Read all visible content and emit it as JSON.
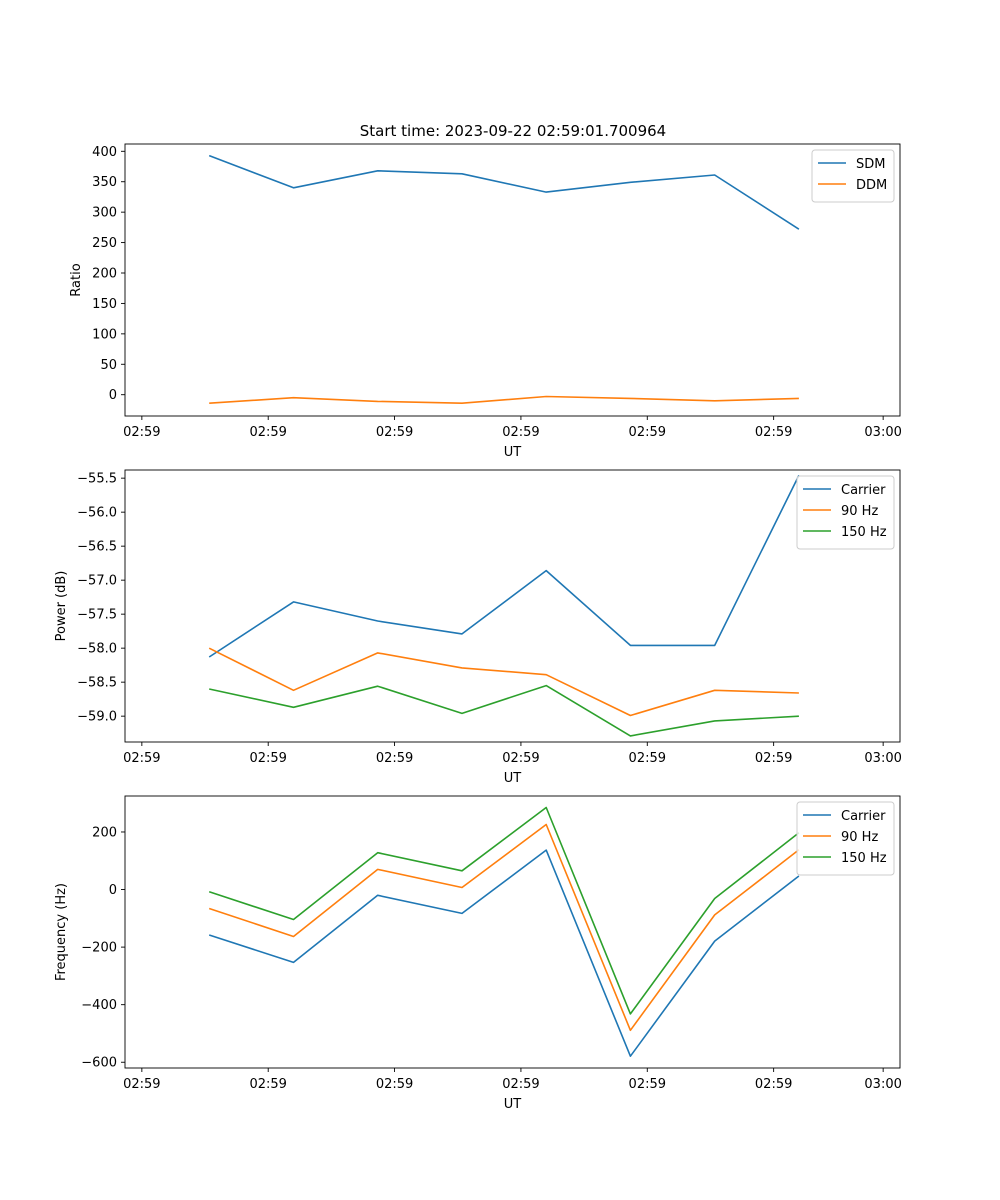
{
  "figure_title": "Start time: 2023-09-22 02:59:01.700964",
  "colors": {
    "blue": "#1f77b4",
    "orange": "#ff7f0e",
    "green": "#2ca02c"
  },
  "chart_data": [
    {
      "type": "line",
      "xlabel": "UT",
      "ylabel": "Ratio",
      "x": [
        1,
        2,
        3,
        4,
        5,
        6,
        7,
        8
      ],
      "xlim": [
        0,
        9.2
      ],
      "x_ticks": [
        0.2,
        1.7,
        3.2,
        4.7,
        6.2,
        7.7,
        9.0
      ],
      "x_tick_labels": [
        "02:59",
        "02:59",
        "02:59",
        "02:59",
        "02:59",
        "02:59",
        "03:00"
      ],
      "ylim": [
        -35,
        412
      ],
      "y_ticks": [
        0,
        50,
        100,
        150,
        200,
        250,
        300,
        350,
        400
      ],
      "y_tick_labels": [
        "0",
        "50",
        "100",
        "150",
        "200",
        "250",
        "300",
        "350",
        "400"
      ],
      "legend_position": "top-right",
      "series": [
        {
          "name": "SDM",
          "color": "#1f77b4",
          "values": [
            393,
            340,
            368,
            363,
            333,
            349,
            361,
            272
          ]
        },
        {
          "name": "DDM",
          "color": "#ff7f0e",
          "values": [
            -14,
            -5,
            -11,
            -14,
            -3,
            -6,
            -10,
            -6
          ]
        }
      ]
    },
    {
      "type": "line",
      "xlabel": "UT",
      "ylabel": "Power (dB)",
      "x": [
        1,
        2,
        3,
        4,
        5,
        6,
        7,
        8
      ],
      "xlim": [
        0,
        9.2
      ],
      "x_ticks": [
        0.2,
        1.7,
        3.2,
        4.7,
        6.2,
        7.7,
        9.0
      ],
      "x_tick_labels": [
        "02:59",
        "02:59",
        "02:59",
        "02:59",
        "02:59",
        "02:59",
        "03:00"
      ],
      "ylim": [
        -59.38,
        -55.38
      ],
      "y_ticks": [
        -59.0,
        -58.5,
        -58.0,
        -57.5,
        -57.0,
        -56.5,
        -56.0,
        -55.5
      ],
      "y_tick_labels": [
        "−59.0",
        "−58.5",
        "−58.0",
        "−57.5",
        "−57.0",
        "−56.5",
        "−56.0",
        "−55.5"
      ],
      "legend_position": "top-right",
      "series": [
        {
          "name": "Carrier",
          "color": "#1f77b4",
          "values": [
            -58.13,
            -57.32,
            -57.6,
            -57.79,
            -56.86,
            -57.96,
            -57.96,
            -55.46
          ]
        },
        {
          "name": "90 Hz",
          "color": "#ff7f0e",
          "values": [
            -58.0,
            -58.62,
            -58.07,
            -58.29,
            -58.39,
            -58.99,
            -58.62,
            -58.66
          ]
        },
        {
          "name": "150 Hz",
          "color": "#2ca02c",
          "values": [
            -58.6,
            -58.87,
            -58.56,
            -58.96,
            -58.55,
            -59.29,
            -59.07,
            -59.0
          ]
        }
      ]
    },
    {
      "type": "line",
      "xlabel": "UT",
      "ylabel": "Frequency (Hz)",
      "x": [
        1,
        2,
        3,
        4,
        5,
        6,
        7,
        8
      ],
      "xlim": [
        0,
        9.2
      ],
      "x_ticks": [
        0.2,
        1.7,
        3.2,
        4.7,
        6.2,
        7.7,
        9.0
      ],
      "x_tick_labels": [
        "02:59",
        "02:59",
        "02:59",
        "02:59",
        "02:59",
        "02:59",
        "03:00"
      ],
      "ylim": [
        -620,
        325
      ],
      "y_ticks": [
        -600,
        -400,
        -200,
        0,
        200
      ],
      "y_tick_labels": [
        "−600",
        "−400",
        "−200",
        "0",
        "200"
      ],
      "legend_position": "top-right",
      "series": [
        {
          "name": "Carrier",
          "color": "#1f77b4",
          "values": [
            -158,
            -253,
            -20,
            -83,
            137,
            -579,
            -179,
            47
          ]
        },
        {
          "name": "90 Hz",
          "color": "#ff7f0e",
          "values": [
            -66,
            -163,
            70,
            7,
            226,
            -489,
            -88,
            138
          ]
        },
        {
          "name": "150 Hz",
          "color": "#2ca02c",
          "values": [
            -8,
            -104,
            128,
            65,
            285,
            -432,
            -31,
            197
          ]
        }
      ]
    }
  ]
}
